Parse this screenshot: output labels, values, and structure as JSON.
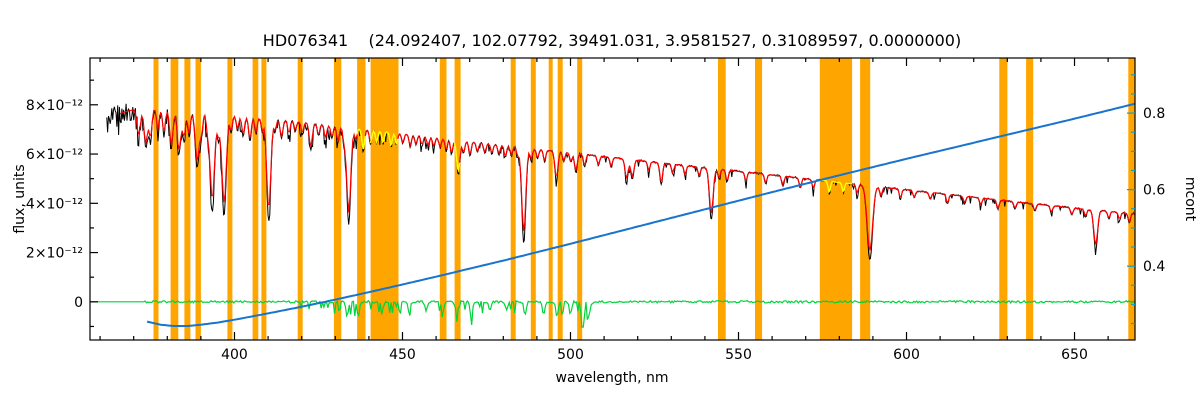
{
  "chart_data": {
    "type": "line",
    "title": "HD076341    (24.092407, 102.07792, 39491.031, 3.9581527, 0.31089597, 0.0000000)",
    "xlabel": "wavelength, nm",
    "ylabel_left": "flux, units",
    "ylabel_right": "mcont",
    "xlim": [
      357,
      668
    ],
    "ylim_left": [
      -1.55,
      9.9
    ],
    "flux_unit": "1e-12",
    "ylim_right": [
      0.207,
      0.944
    ],
    "x_ticks": [
      400,
      450,
      500,
      550,
      600,
      650
    ],
    "y_ticks_left": [
      0,
      2,
      4,
      6,
      8
    ],
    "y_tick_labels_left": [
      "0",
      "2×10⁻¹²",
      "4×10⁻¹²",
      "6×10⁻¹²",
      "8×10⁻¹²"
    ],
    "y_minor_left": [
      -1,
      1,
      3,
      5,
      7,
      9
    ],
    "y_ticks_right": [
      0.4,
      0.6,
      0.8
    ],
    "grid": false,
    "legend": "none",
    "colors": {
      "mask": "#FFA500",
      "spectrum": "#000000",
      "fit": "#FF0000",
      "masked_fit": "#FFFF00",
      "residual": "#00D33B",
      "mcont": "#1874CD",
      "right_axis": "#00A2DB",
      "axis": "#000000"
    },
    "series": [
      {
        "name": "observed spectrum",
        "color_key": "spectrum",
        "axis": "left"
      },
      {
        "name": "fitted spectrum",
        "color_key": "fit",
        "axis": "left"
      },
      {
        "name": "masked-region fit",
        "color_key": "masked_fit",
        "axis": "left"
      },
      {
        "name": "residual",
        "color_key": "residual",
        "axis": "left"
      },
      {
        "name": "mcont",
        "color_key": "mcont",
        "axis": "right"
      }
    ],
    "continuum": [
      [
        362,
        7.2
      ],
      [
        364,
        7.5
      ],
      [
        367,
        7.7
      ],
      [
        370,
        7.8
      ],
      [
        374,
        7.85
      ],
      [
        378,
        7.9
      ],
      [
        382,
        7.85
      ],
      [
        386,
        7.8
      ],
      [
        390,
        7.72
      ],
      [
        395,
        7.65
      ],
      [
        400,
        7.55
      ],
      [
        405,
        7.5
      ],
      [
        410,
        7.45
      ],
      [
        415,
        7.38
      ],
      [
        420,
        7.3
      ],
      [
        425,
        7.22
      ],
      [
        430,
        7.12
      ],
      [
        435,
        7.05
      ],
      [
        440,
        6.98
      ],
      [
        445,
        6.9
      ],
      [
        450,
        6.82
      ],
      [
        455,
        6.74
      ],
      [
        460,
        6.66
      ],
      [
        465,
        6.58
      ],
      [
        470,
        6.5
      ],
      [
        475,
        6.42
      ],
      [
        480,
        6.35
      ],
      [
        485,
        6.28
      ],
      [
        490,
        6.2
      ],
      [
        495,
        6.12
      ],
      [
        500,
        6.05
      ],
      [
        505,
        5.97
      ],
      [
        510,
        5.9
      ],
      [
        515,
        5.82
      ],
      [
        520,
        5.75
      ],
      [
        525,
        5.67
      ],
      [
        530,
        5.6
      ],
      [
        535,
        5.52
      ],
      [
        540,
        5.45
      ],
      [
        545,
        5.38
      ],
      [
        550,
        5.3
      ],
      [
        555,
        5.23
      ],
      [
        560,
        5.15
      ],
      [
        565,
        5.08
      ],
      [
        570,
        5.0
      ],
      [
        575,
        4.93
      ],
      [
        580,
        4.85
      ],
      [
        585,
        4.78
      ],
      [
        590,
        4.7
      ],
      [
        595,
        4.62
      ],
      [
        600,
        4.55
      ],
      [
        605,
        4.47
      ],
      [
        610,
        4.4
      ],
      [
        615,
        4.32
      ],
      [
        620,
        4.25
      ],
      [
        625,
        4.17
      ],
      [
        630,
        4.1
      ],
      [
        635,
        4.02
      ],
      [
        640,
        3.95
      ],
      [
        645,
        3.88
      ],
      [
        650,
        3.8
      ],
      [
        655,
        3.73
      ],
      [
        660,
        3.68
      ],
      [
        664,
        3.62
      ],
      [
        668,
        3.58
      ]
    ],
    "absorption_lines": [
      [
        371.5,
        1.2,
        0.5
      ],
      [
        373.6,
        1.6,
        0.5
      ],
      [
        375.0,
        1.3,
        0.45
      ],
      [
        377.2,
        1.0,
        0.4
      ],
      [
        379.0,
        1.1,
        0.45
      ],
      [
        381.2,
        1.7,
        0.5
      ],
      [
        383.5,
        1.9,
        0.55
      ],
      [
        385.0,
        1.2,
        0.45
      ],
      [
        386.5,
        1.1,
        0.4
      ],
      [
        388.9,
        2.3,
        0.6
      ],
      [
        390.2,
        0.9,
        0.4
      ],
      [
        392.0,
        0.8,
        0.4
      ],
      [
        393.4,
        4.0,
        0.65
      ],
      [
        395.2,
        0.9,
        0.4
      ],
      [
        396.9,
        4.1,
        0.65
      ],
      [
        399.0,
        0.7,
        0.35
      ],
      [
        400.9,
        0.6
      ],
      [
        402.6,
        0.8,
        0.4
      ],
      [
        404.6,
        1.0,
        0.4
      ],
      [
        406.4,
        0.7
      ],
      [
        408.3,
        0.6
      ],
      [
        410.2,
        4.2,
        0.6
      ],
      [
        412.1,
        0.5
      ],
      [
        414.0,
        0.8,
        0.4
      ],
      [
        416.2,
        0.6
      ],
      [
        418.1,
        0.4
      ],
      [
        420.2,
        0.5
      ],
      [
        422.7,
        1.1,
        0.45
      ],
      [
        425.0,
        0.5
      ],
      [
        427.1,
        0.6
      ],
      [
        429.0,
        0.5
      ],
      [
        430.8,
        0.7
      ],
      [
        432.6,
        0.6
      ],
      [
        434.0,
        3.9,
        0.6
      ],
      [
        436.1,
        0.5
      ],
      [
        438.3,
        0.9,
        0.4
      ],
      [
        440.5,
        0.6
      ],
      [
        442.3,
        0.5
      ],
      [
        444.2,
        0.5
      ],
      [
        446.6,
        0.6
      ],
      [
        448.2,
        0.5
      ],
      [
        450.1,
        0.4
      ],
      [
        452.3,
        0.5
      ],
      [
        454.0,
        0.4
      ],
      [
        455.8,
        0.4
      ],
      [
        457.6,
        0.4
      ],
      [
        459.3,
        0.4
      ],
      [
        461.2,
        0.4
      ],
      [
        463.0,
        0.5
      ],
      [
        464.6,
        0.6
      ],
      [
        466.6,
        1.4,
        0.5
      ],
      [
        468.2,
        0.5
      ],
      [
        470.1,
        0.6
      ],
      [
        472.3,
        0.4
      ],
      [
        474.5,
        0.4
      ],
      [
        476.6,
        0.4
      ],
      [
        478.7,
        0.4
      ],
      [
        480.6,
        0.5
      ],
      [
        482.4,
        0.4
      ],
      [
        484.3,
        0.4
      ],
      [
        486.1,
        3.9,
        0.6
      ],
      [
        488.3,
        0.5
      ],
      [
        490.2,
        0.4
      ],
      [
        492.3,
        0.5
      ],
      [
        495.8,
        1.2,
        0.45
      ],
      [
        498.0,
        0.4
      ],
      [
        500.1,
        0.4
      ],
      [
        501.6,
        0.8,
        0.4
      ],
      [
        504.2,
        0.5
      ],
      [
        508.3,
        0.4
      ],
      [
        512.1,
        0.4
      ],
      [
        516.7,
        0.9,
        0.45
      ],
      [
        518.4,
        0.8,
        0.45
      ],
      [
        523.3,
        0.4
      ],
      [
        527.0,
        0.9,
        0.4
      ],
      [
        530.4,
        0.4
      ],
      [
        534.1,
        0.4
      ],
      [
        538.3,
        0.4
      ],
      [
        541.9,
        2.1,
        0.55
      ],
      [
        544.2,
        0.4
      ],
      [
        546.6,
        0.5
      ],
      [
        552.2,
        0.4
      ],
      [
        558.1,
        0.4
      ],
      [
        563.2,
        0.4
      ],
      [
        568.4,
        0.4
      ],
      [
        572.3,
        0.4
      ],
      [
        577.0,
        0.5
      ],
      [
        581.2,
        0.4
      ],
      [
        585.3,
        0.4
      ],
      [
        589.1,
        3.0,
        0.8
      ],
      [
        592.4,
        0.4
      ],
      [
        598.2,
        0.4
      ],
      [
        602.3,
        0.3
      ],
      [
        607.1,
        0.3
      ],
      [
        612.2,
        0.4
      ],
      [
        617.3,
        0.3
      ],
      [
        622.1,
        0.3
      ],
      [
        627.2,
        0.4
      ],
      [
        632.3,
        0.3
      ],
      [
        638.2,
        0.3
      ],
      [
        643.1,
        0.3
      ],
      [
        649.2,
        0.3
      ],
      [
        653.3,
        0.3
      ],
      [
        656.3,
        1.6,
        0.55
      ],
      [
        660.2,
        0.3
      ],
      [
        663.4,
        0.3
      ],
      [
        666.3,
        0.4
      ]
    ],
    "mask_bands": [
      [
        375.9,
        377.4
      ],
      [
        381.0,
        383.3
      ],
      [
        385.1,
        386.9
      ],
      [
        388.4,
        390.0
      ],
      [
        397.9,
        399.4
      ],
      [
        405.4,
        407.1
      ],
      [
        408.0,
        409.5
      ],
      [
        418.8,
        420.3
      ],
      [
        429.6,
        431.8
      ],
      [
        436.5,
        439.0
      ],
      [
        440.5,
        448.8
      ],
      [
        461.1,
        463.1
      ],
      [
        465.5,
        467.3
      ],
      [
        482.2,
        483.7
      ],
      [
        488.2,
        489.7
      ],
      [
        493.5,
        494.7
      ],
      [
        496.2,
        497.7
      ],
      [
        502.0,
        503.5
      ],
      [
        543.9,
        546.2
      ],
      [
        554.9,
        557.0
      ],
      [
        574.2,
        583.8
      ],
      [
        586.2,
        589.2
      ],
      [
        627.6,
        630.0
      ],
      [
        635.6,
        637.7
      ],
      [
        666.0,
        668.4
      ]
    ],
    "yellow_bands": [
      [
        436.5,
        439.0
      ],
      [
        440.5,
        448.8
      ],
      [
        465.5,
        467.3
      ],
      [
        574.2,
        583.8
      ]
    ],
    "residual_spikes": [
      [
        433.5,
        0.6
      ],
      [
        436.8,
        0.5
      ],
      [
        444.0,
        0.35
      ],
      [
        452.0,
        0.45
      ],
      [
        457.0,
        0.35
      ],
      [
        462.0,
        0.4
      ],
      [
        466.0,
        0.35
      ],
      [
        470.5,
        0.5
      ],
      [
        476.0,
        0.35
      ],
      [
        481.0,
        0.3
      ],
      [
        486.5,
        0.55
      ],
      [
        492.0,
        0.5
      ],
      [
        496.0,
        0.6
      ],
      [
        500.0,
        0.5
      ],
      [
        503.5,
        1.05
      ],
      [
        505.5,
        0.6
      ]
    ],
    "mcont": [
      [
        374,
        0.255
      ],
      [
        378,
        0.247
      ],
      [
        382,
        0.2435
      ],
      [
        386,
        0.2435
      ],
      [
        390,
        0.247
      ],
      [
        395,
        0.2525
      ],
      [
        400,
        0.26
      ],
      [
        410,
        0.2765
      ],
      [
        420,
        0.294
      ],
      [
        430,
        0.3125
      ],
      [
        440,
        0.332
      ],
      [
        450,
        0.352
      ],
      [
        460,
        0.3725
      ],
      [
        470,
        0.3935
      ],
      [
        480,
        0.4145
      ],
      [
        490,
        0.4365
      ],
      [
        500,
        0.4585
      ],
      [
        510,
        0.481
      ],
      [
        520,
        0.5035
      ],
      [
        530,
        0.526
      ],
      [
        540,
        0.5485
      ],
      [
        550,
        0.571
      ],
      [
        560,
        0.5935
      ],
      [
        570,
        0.6155
      ],
      [
        580,
        0.6375
      ],
      [
        590,
        0.659
      ],
      [
        600,
        0.6805
      ],
      [
        610,
        0.7015
      ],
      [
        620,
        0.7225
      ],
      [
        630,
        0.7435
      ],
      [
        640,
        0.7645
      ],
      [
        650,
        0.7855
      ],
      [
        660,
        0.807
      ],
      [
        668,
        0.8245
      ]
    ]
  }
}
